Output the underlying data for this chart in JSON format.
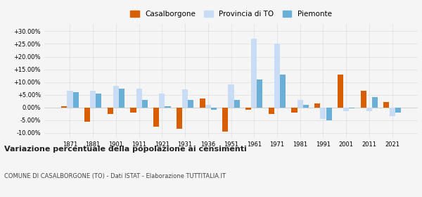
{
  "years": [
    1871,
    1881,
    1901,
    1911,
    1921,
    1931,
    1936,
    1951,
    1961,
    1971,
    1981,
    1991,
    2001,
    2011,
    2021
  ],
  "casalborgone": [
    0.5,
    -5.5,
    -2.5,
    -2.0,
    -7.5,
    -8.5,
    3.5,
    -9.5,
    -1.0,
    -2.5,
    -2.0,
    1.5,
    13.0,
    6.5,
    2.0
  ],
  "provincia_to": [
    6.5,
    6.5,
    8.5,
    7.5,
    5.5,
    7.0,
    1.0,
    9.0,
    27.0,
    25.0,
    3.0,
    -4.5,
    -1.5,
    -1.5,
    -3.5
  ],
  "piemonte": [
    6.0,
    5.5,
    7.5,
    3.0,
    0.5,
    3.0,
    -1.0,
    3.0,
    11.0,
    13.0,
    1.0,
    -5.0,
    -0.5,
    4.0,
    -2.0
  ],
  "color_casalborgone": "#d85e00",
  "color_provincia": "#c8ddf5",
  "color_piemonte": "#6aafd6",
  "title": "Variazione percentuale della popolazione ai censimenti",
  "subtitle": "COMUNE DI CASALBORGONE (TO) - Dati ISTAT - Elaborazione TUTTITALIA.IT",
  "legend_labels": [
    "Casalborgone",
    "Provincia di TO",
    "Piemonte"
  ],
  "yticks": [
    -10,
    -5,
    0,
    5,
    10,
    15,
    20,
    25,
    30
  ],
  "ylim": [
    -12,
    33
  ],
  "background_color": "#f5f5f5",
  "grid_color": "#dddddd",
  "bar_width": 0.25
}
